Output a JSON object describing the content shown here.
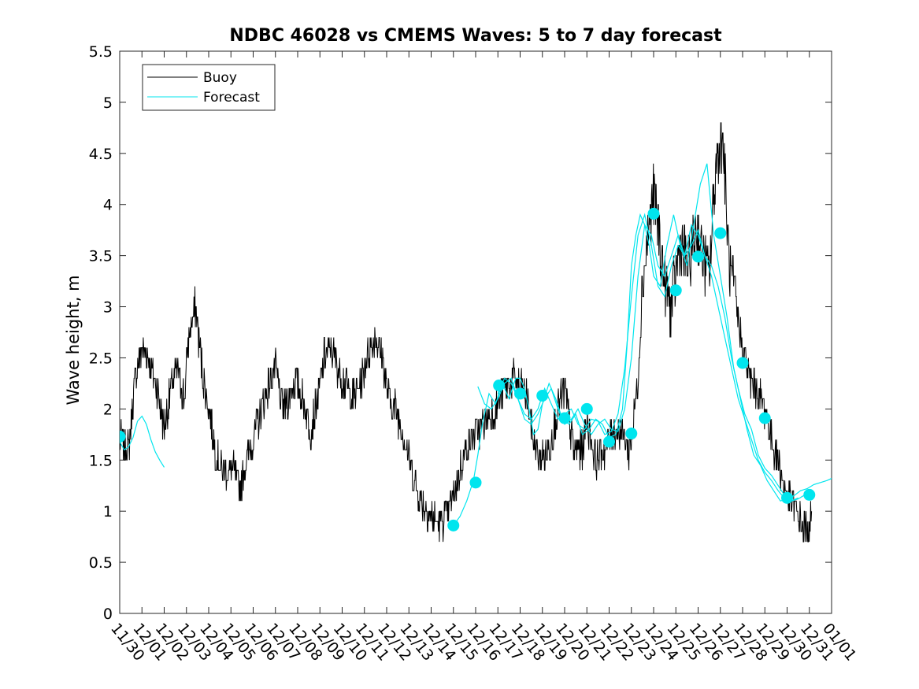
{
  "chart_data": {
    "type": "line",
    "title": "NDBC 46028 vs CMEMS Waves: 5 to 7 day forecast",
    "xlabel": "",
    "ylabel": "Wave height, m",
    "x_tick_labels": [
      "11/30",
      "12/01",
      "12/02",
      "12/03",
      "12/04",
      "12/05",
      "12/06",
      "12/07",
      "12/08",
      "12/09",
      "12/10",
      "12/11",
      "12/12",
      "12/13",
      "12/14",
      "12/15",
      "12/16",
      "12/17",
      "12/18",
      "12/19",
      "12/20",
      "12/21",
      "12/22",
      "12/23",
      "12/24",
      "12/25",
      "12/26",
      "12/27",
      "12/28",
      "12/29",
      "12/30",
      "12/31",
      "01/01"
    ],
    "y_ticks": [
      0,
      0.5,
      1,
      1.5,
      2,
      2.5,
      3,
      3.5,
      4,
      4.5,
      5,
      5.5
    ],
    "y_tick_labels": [
      "0",
      "0.5",
      "1",
      "1.5",
      "2",
      "2.5",
      "3",
      "3.5",
      "4",
      "4.5",
      "5",
      "5.5"
    ],
    "xlim": [
      0,
      32
    ],
    "ylim": [
      0,
      5.5
    ],
    "grid": false,
    "legend_position": "top-left",
    "series": [
      {
        "name": "Buoy",
        "color": "#000000",
        "noisy": true,
        "x": [
          0,
          0.4,
          0.7,
          1.0,
          1.3,
          1.7,
          2.0,
          2.3,
          2.6,
          2.9,
          3.1,
          3.4,
          3.7,
          4.0,
          4.3,
          4.6,
          5.1,
          5.4,
          5.7,
          6.0,
          6.5,
          6.8,
          7.0,
          7.3,
          7.6,
          7.9,
          8.2,
          8.6,
          8.9,
          9.2,
          9.5,
          10.0,
          10.5,
          10.9,
          11.1,
          11.5,
          11.8,
          12.1,
          12.4,
          12.7,
          13.0,
          13.4,
          13.8,
          14.2,
          14.5,
          14.8,
          15.2,
          15.5,
          15.8,
          16.1,
          16.5,
          16.9,
          17.3,
          17.7,
          18.0,
          18.3,
          18.6,
          18.9,
          19.3,
          19.7,
          20.0,
          20.4,
          20.8,
          21.0,
          21.4,
          21.8,
          22.2,
          22.5,
          22.9,
          23.0,
          23.3,
          23.5,
          23.8,
          24.0,
          24.2,
          24.5,
          24.8,
          25.0,
          25.2,
          25.6,
          25.9,
          26.2,
          26.5,
          26.8,
          27.1,
          27.4,
          27.7,
          28.0,
          28.3,
          28.6,
          29.0,
          29.3,
          29.6,
          29.9,
          30.3,
          30.6,
          30.9,
          31.1
        ],
        "y": [
          1.7,
          1.6,
          2.3,
          2.6,
          2.5,
          2.2,
          1.8,
          2.2,
          2.4,
          2.1,
          2.7,
          3.0,
          2.4,
          2.0,
          1.6,
          1.4,
          1.4,
          1.2,
          1.5,
          1.7,
          2.1,
          2.3,
          2.4,
          2.0,
          2.1,
          2.3,
          2.1,
          1.8,
          2.1,
          2.5,
          2.6,
          2.3,
          2.1,
          2.3,
          2.5,
          2.7,
          2.5,
          2.1,
          2.0,
          1.8,
          1.5,
          1.2,
          1.0,
          0.9,
          0.9,
          1.0,
          1.3,
          1.6,
          1.7,
          1.8,
          1.9,
          2.0,
          2.2,
          2.3,
          2.2,
          2.1,
          1.7,
          1.5,
          1.6,
          2.0,
          2.2,
          1.6,
          1.6,
          1.9,
          1.5,
          1.6,
          1.8,
          1.8,
          1.6,
          1.7,
          2.3,
          3.2,
          3.8,
          4.1,
          3.8,
          3.2,
          3.0,
          3.3,
          3.6,
          3.4,
          3.8,
          3.5,
          3.3,
          4.4,
          4.7,
          3.4,
          3.0,
          2.6,
          2.3,
          2.2,
          2.0,
          1.7,
          1.5,
          1.2,
          1.05,
          0.9,
          0.8,
          0.95
        ]
      },
      {
        "name": "Forecast",
        "color": "#00e5ee",
        "segments": [
          {
            "x": [
              0,
              0.2,
              0.4,
              0.6,
              0.8,
              1.0,
              1.2,
              1.4,
              1.6,
              1.8,
              2.0
            ],
            "y": [
              1.68,
              1.6,
              1.63,
              1.72,
              1.88,
              1.93,
              1.85,
              1.7,
              1.58,
              1.5,
              1.43
            ]
          },
          {
            "x": [
              15.0,
              15.3,
              15.6,
              15.9,
              16.1,
              16.3,
              16.6,
              16.9,
              17.2,
              17.5,
              17.8,
              18.0,
              18.2,
              18.4,
              18.6,
              18.8,
              19.0,
              19.3,
              19.6,
              19.9,
              20.2,
              20.5,
              20.8,
              21.1,
              21.4,
              21.7,
              22.0,
              22.3,
              22.6,
              22.8,
              23.0,
              23.2,
              23.4,
              23.6,
              23.8,
              24.0,
              24.3,
              24.6,
              24.9,
              25.2,
              25.5,
              25.8,
              26.1,
              26.4,
              26.7,
              27.0,
              27.3,
              27.6,
              27.9,
              28.2,
              28.5,
              28.8,
              29.1,
              29.4,
              29.7,
              30.0,
              30.3,
              30.6,
              30.9,
              31.2,
              31.5,
              31.8,
              32.0
            ],
            "y": [
              0.86,
              0.95,
              1.1,
              1.3,
              1.55,
              1.85,
              2.15,
              2.05,
              2.25,
              2.1,
              2.3,
              2.3,
              2.2,
              2.0,
              1.75,
              1.8,
              2.05,
              2.25,
              2.1,
              1.9,
              1.85,
              1.95,
              1.75,
              1.8,
              1.9,
              1.85,
              1.72,
              1.75,
              2.0,
              2.6,
              3.4,
              3.7,
              3.9,
              3.8,
              3.6,
              3.3,
              3.2,
              3.6,
              3.9,
              3.6,
              3.4,
              3.8,
              4.2,
              4.4,
              3.7,
              3.3,
              2.9,
              2.4,
              2.1,
              1.8,
              1.55,
              1.45,
              1.3,
              1.2,
              1.1,
              1.12,
              1.15,
              1.2,
              1.22,
              1.26,
              1.28,
              1.3,
              1.32
            ]
          },
          {
            "x": [
              16.1,
              16.4,
              16.7,
              17.0,
              17.3,
              17.6,
              17.9,
              18.2,
              18.5,
              18.8,
              19.1,
              19.4,
              19.7,
              20.0,
              20.3,
              20.6,
              20.9,
              21.2,
              21.5,
              21.8,
              22.1,
              22.4,
              22.7,
              23.0,
              23.3,
              23.6,
              23.9,
              24.2,
              24.5,
              24.8,
              25.1,
              25.4,
              25.7,
              26.0,
              26.3,
              26.6,
              26.9,
              27.2,
              27.5,
              27.8,
              28.1,
              28.4,
              28.7,
              29.0,
              29.3,
              29.6,
              29.9,
              30.2,
              30.5,
              30.8
            ],
            "y": [
              2.22,
              2.05,
              2.0,
              2.1,
              2.25,
              2.3,
              2.1,
              1.9,
              1.85,
              1.95,
              2.1,
              2.2,
              2.0,
              1.85,
              1.9,
              2.0,
              1.85,
              1.75,
              1.85,
              1.9,
              1.8,
              1.78,
              2.0,
              2.5,
              3.3,
              3.8,
              3.7,
              3.4,
              3.3,
              3.5,
              3.7,
              3.5,
              3.6,
              3.75,
              3.5,
              3.4,
              3.2,
              2.9,
              2.5,
              2.2,
              1.95,
              1.8,
              1.55,
              1.42,
              1.35,
              1.25,
              1.15,
              1.1,
              1.12,
              1.16
            ]
          },
          {
            "x": [
              17.0,
              17.3,
              17.6,
              17.9,
              18.2,
              18.5,
              18.8,
              19.1,
              19.4,
              19.7,
              20.0,
              20.3,
              20.6,
              20.9,
              21.2,
              21.5,
              21.8,
              22.1,
              22.4,
              22.7,
              23.0,
              23.3,
              23.6,
              23.9,
              24.2,
              24.5,
              24.8,
              25.1,
              25.4,
              25.7,
              26.0,
              26.3,
              26.6,
              26.9,
              27.2,
              27.5,
              27.8,
              28.1,
              28.4,
              28.7,
              29.0,
              29.3,
              29.6,
              29.9,
              30.2,
              30.5
            ],
            "y": [
              2.15,
              2.3,
              2.25,
              2.1,
              1.95,
              1.9,
              2.0,
              2.2,
              2.05,
              1.9,
              1.95,
              2.0,
              1.85,
              1.8,
              1.9,
              1.88,
              1.75,
              1.78,
              1.95,
              2.4,
              3.1,
              3.7,
              3.9,
              3.6,
              3.2,
              3.1,
              3.4,
              3.6,
              3.5,
              3.8,
              3.7,
              3.5,
              3.3,
              3.0,
              2.7,
              2.4,
              2.1,
              1.9,
              1.7,
              1.5,
              1.38,
              1.3,
              1.2,
              1.12,
              1.1,
              1.13
            ]
          }
        ],
        "markers_x": [
          0,
          15.0,
          16.0,
          17.05,
          18.0,
          19.0,
          20.0,
          21.0,
          22.0,
          23.0,
          24.0,
          25.0,
          26.0,
          27.0,
          28.0,
          29.0,
          30.0,
          31.0
        ],
        "markers_y": [
          1.73,
          0.86,
          1.28,
          2.23,
          2.15,
          2.13,
          1.91,
          2.0,
          1.68,
          1.76,
          3.91,
          3.16,
          3.49,
          3.72,
          2.45,
          1.91,
          1.13,
          1.16
        ]
      }
    ]
  }
}
